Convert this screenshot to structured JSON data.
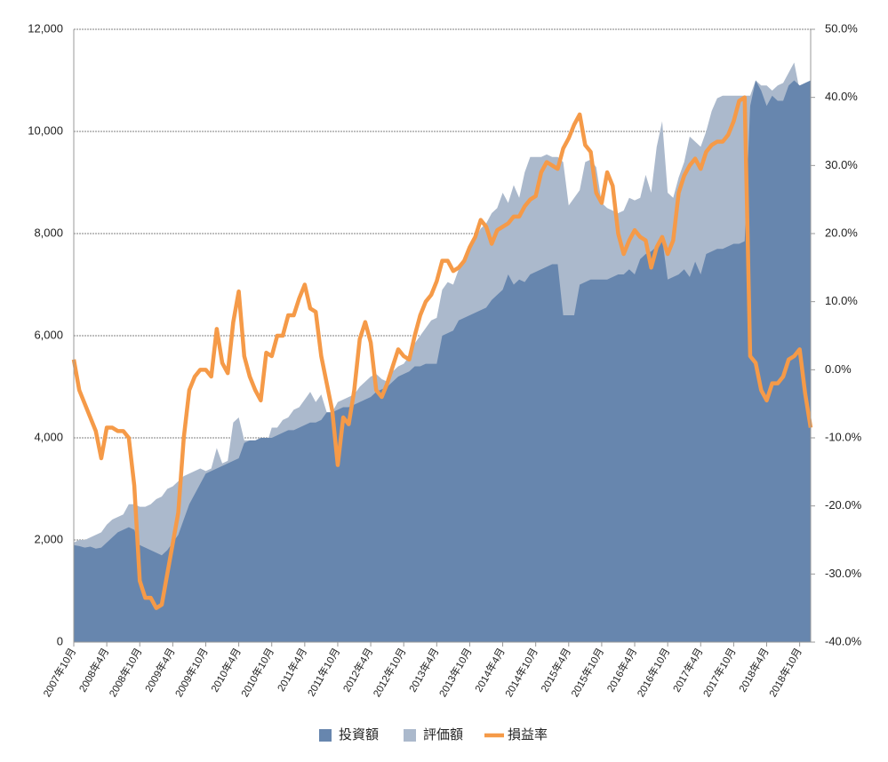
{
  "chart_data": {
    "type": "area",
    "categories": [
      "2007年10月",
      null,
      null,
      null,
      null,
      null,
      "2008年4月",
      null,
      null,
      null,
      null,
      null,
      "2008年10月",
      null,
      null,
      null,
      null,
      null,
      "2009年4月",
      null,
      null,
      null,
      null,
      null,
      "2009年10月",
      null,
      null,
      null,
      null,
      null,
      "2010年4月",
      null,
      null,
      null,
      null,
      null,
      "2010年10月",
      null,
      null,
      null,
      null,
      null,
      "2011年4月",
      null,
      null,
      null,
      null,
      null,
      "2011年10月",
      null,
      null,
      null,
      null,
      null,
      "2012年4月",
      null,
      null,
      null,
      null,
      null,
      "2012年10月",
      null,
      null,
      null,
      null,
      null,
      "2013年4月",
      null,
      null,
      null,
      null,
      null,
      "2013年10月",
      null,
      null,
      null,
      null,
      null,
      "2014年4月",
      null,
      null,
      null,
      null,
      null,
      "2014年10月",
      null,
      null,
      null,
      null,
      null,
      "2015年4月",
      null,
      null,
      null,
      null,
      null,
      "2015年10月",
      null,
      null,
      null,
      null,
      null,
      "2016年4月",
      null,
      null,
      null,
      null,
      null,
      "2016年10月",
      null,
      null,
      null,
      null,
      null,
      "2017年4月",
      null,
      null,
      null,
      null,
      null,
      "2017年10月",
      null,
      null,
      null,
      null,
      null,
      "2018年4月",
      null,
      null,
      null,
      null,
      null,
      "2018年10月",
      null,
      null
    ],
    "series": [
      {
        "name": "投資額",
        "type": "area",
        "color": "#6786ae",
        "values": [
          1900,
          1880,
          1850,
          1870,
          1830,
          1850,
          1950,
          2050,
          2150,
          2200,
          2250,
          2200,
          1900,
          1850,
          1800,
          1750,
          1700,
          1800,
          1950,
          2100,
          2400,
          2700,
          2900,
          3100,
          3300,
          3350,
          3400,
          3450,
          3500,
          3550,
          3600,
          3900,
          3950,
          3950,
          4000,
          4000,
          4000,
          4050,
          4100,
          4150,
          4150,
          4200,
          4250,
          4300,
          4300,
          4350,
          4500,
          4500,
          4550,
          4600,
          4600,
          4650,
          4700,
          4750,
          4800,
          4900,
          4950,
          5000,
          5100,
          5200,
          5250,
          5300,
          5400,
          5400,
          5450,
          5450,
          5450,
          6000,
          6050,
          6100,
          6300,
          6350,
          6400,
          6450,
          6500,
          6550,
          6700,
          6800,
          6900,
          7200,
          7000,
          7100,
          7050,
          7200,
          7250,
          7300,
          7350,
          7400,
          7400,
          6400,
          6400,
          6400,
          7000,
          7050,
          7100,
          7100,
          7100,
          7100,
          7150,
          7200,
          7200,
          7300,
          7200,
          7500,
          7600,
          7650,
          7750,
          7900,
          7100,
          7150,
          7200,
          7300,
          7150,
          7450,
          7200,
          7600,
          7650,
          7700,
          7700,
          7750,
          7800,
          7800,
          7850,
          10500,
          11000,
          10800,
          10500,
          10700,
          10600,
          10600,
          10900,
          11000,
          10900,
          10950,
          11000
        ]
      },
      {
        "name": "評価額",
        "type": "area",
        "color": "#abb9cc",
        "values": [
          1950,
          2000,
          2000,
          2050,
          2100,
          2150,
          2300,
          2400,
          2450,
          2500,
          2700,
          2700,
          2650,
          2650,
          2700,
          2800,
          2850,
          3000,
          3050,
          3150,
          3250,
          3300,
          3350,
          3400,
          3350,
          3400,
          3800,
          3500,
          3550,
          4300,
          4400,
          3950,
          3950,
          3950,
          3900,
          3850,
          4200,
          4200,
          4350,
          4400,
          4550,
          4600,
          4750,
          4900,
          4700,
          4850,
          4500,
          4500,
          4700,
          4750,
          4800,
          4850,
          5000,
          5100,
          5200,
          5250,
          5150,
          5100,
          5300,
          5400,
          5450,
          5600,
          5850,
          6000,
          6150,
          6300,
          6350,
          6900,
          7050,
          7000,
          7300,
          7500,
          7700,
          7900,
          8100,
          8200,
          8400,
          8500,
          8800,
          8600,
          8950,
          8700,
          9200,
          9500,
          9500,
          9500,
          9550,
          9500,
          9500,
          9400,
          8550,
          8700,
          8850,
          9400,
          9450,
          9300,
          8600,
          8500,
          8450,
          8400,
          8450,
          8700,
          8650,
          8700,
          9150,
          8800,
          9700,
          10200,
          8800,
          8700,
          9100,
          9400,
          9900,
          9800,
          9700,
          10000,
          10400,
          10650,
          10700,
          10700,
          10700,
          10700,
          10700,
          10700,
          11000,
          10900,
          10900,
          10800,
          10900,
          10950,
          11150,
          11350,
          10800,
          10400,
          10000
        ]
      },
      {
        "name": "損益率",
        "type": "line",
        "axis": "y2",
        "color": "#f59a48",
        "values": [
          1.5,
          -3,
          -5,
          -7,
          -9,
          -13,
          -8.5,
          -8.5,
          -9,
          -9,
          -10,
          -17,
          -31,
          -33.5,
          -33.5,
          -35,
          -34.5,
          -30,
          -25.5,
          -21,
          -10,
          -3,
          -1,
          0,
          0,
          -1,
          6,
          1,
          -0.5,
          7,
          11.5,
          2,
          -1,
          -3,
          -4.5,
          2.5,
          2,
          5,
          5,
          8,
          8,
          10.5,
          12.5,
          9,
          8.5,
          2,
          -2,
          -6,
          -14,
          -7,
          -8,
          -3,
          4.5,
          7,
          4,
          -3,
          -4,
          -2,
          0.5,
          3,
          2,
          1.5,
          5,
          8,
          10,
          11,
          13,
          16,
          16,
          14.5,
          15,
          16,
          18,
          19.5,
          22,
          21,
          18.5,
          20.5,
          21,
          21.5,
          22.5,
          22.5,
          24,
          25,
          25.5,
          29,
          30.5,
          30,
          29.5,
          32.5,
          34,
          36,
          37.5,
          33,
          32,
          26,
          24.5,
          29,
          27,
          20,
          17,
          19,
          20.5,
          19.5,
          19,
          15,
          18,
          19.5,
          17,
          19,
          26,
          28.5,
          30,
          31,
          29.5,
          32,
          33,
          33.5,
          33.5,
          34.5,
          36.5,
          39.5,
          40,
          2,
          1,
          -3,
          -4.5,
          -2,
          -2,
          -1,
          1.5,
          2,
          3,
          -3.5,
          -8.5
        ]
      }
    ],
    "ylim": [
      0,
      12000
    ],
    "yticks": [
      0,
      {
        "value": 2000,
        "label": "2,000"
      },
      {
        "value": 4000,
        "label": "4,000"
      },
      {
        "value": 6000,
        "label": "6,000"
      },
      {
        "value": 8000,
        "label": "8,000"
      },
      {
        "value": 10000,
        "label": "10,000"
      },
      {
        "value": 12000,
        "label": "12,000"
      }
    ],
    "y2lim": [
      -40,
      50
    ],
    "y2ticks": [
      {
        "value": -40,
        "label": "-40.0%"
      },
      {
        "value": -30,
        "label": "-30.0%"
      },
      {
        "value": -20,
        "label": "-20.0%"
      },
      {
        "value": -10,
        "label": "-10.0%"
      },
      {
        "value": 0,
        "label": "0.0%"
      },
      {
        "value": 10,
        "label": "10.0%"
      },
      {
        "value": 20,
        "label": "20.0%"
      },
      {
        "value": 30,
        "label": "30.0%"
      },
      {
        "value": 40,
        "label": "40.0%"
      },
      {
        "value": 50,
        "label": "50.0%"
      }
    ],
    "grid": true,
    "legend": "bottom"
  }
}
